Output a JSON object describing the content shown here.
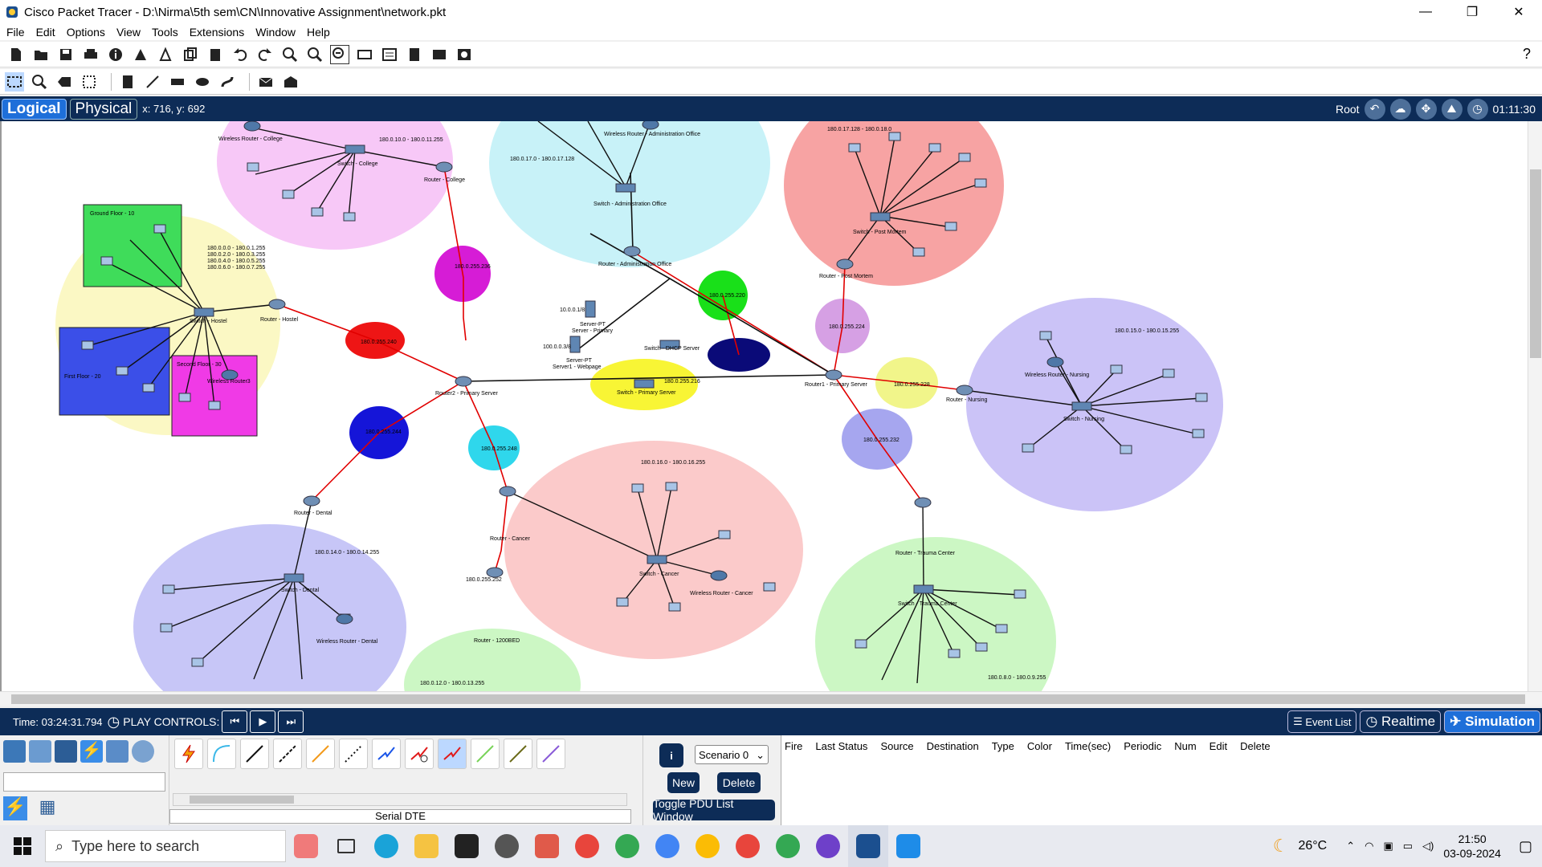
{
  "window": {
    "title": "Cisco Packet Tracer - D:\\Nirma\\5th sem\\CN\\Innovative Assignment\\network.pkt",
    "min": "—",
    "max": "❐",
    "close": "✕"
  },
  "menu": [
    "File",
    "Edit",
    "Options",
    "View",
    "Tools",
    "Extensions",
    "Window",
    "Help"
  ],
  "help_glyph": "?",
  "nav": {
    "logical": "Logical",
    "physical": "Physical",
    "coords": "x: 716, y: 692",
    "root": "Root",
    "clock": "01:11:30"
  },
  "canvas": {
    "zones": [
      {
        "label": "180.0.10.0 - 180.0.11.255"
      },
      {
        "label": "180.0.17.0 - 180.0.17.128"
      },
      {
        "label": "180.0.17.128 - 180.0.18.0"
      },
      {
        "label": "Ground Floor - 10"
      },
      {
        "label": "First Floor - 20"
      },
      {
        "label": "Second Floor - 30"
      },
      {
        "label": "180.0.15.0 - 180.0.15.255"
      },
      {
        "label": "180.0.16.0 - 180.0.16.255"
      },
      {
        "label": "180.0.14.0 - 180.0.14.255"
      },
      {
        "label": "180.0.8.0 - 180.0.9.255"
      },
      {
        "label": "180.0.12.0 - 180.0.13.255"
      }
    ],
    "hostel_ranges": [
      "180.0.0.0 - 180.0.1.255",
      "180.0.2.0 - 180.0.3.255",
      "180.0.4.0 - 180.0.5.255",
      "180.0.6.0 - 180.0.7.255"
    ],
    "links": [
      "180.0.255.236",
      "180.0.255.240",
      "180.0.255.244",
      "180.0.255.248",
      "180.0.255.252",
      "180.0.255.220",
      "180.0.255.224",
      "180.0.255.228",
      "180.0.255.232",
      "180.0.255.216"
    ],
    "servers": [
      {
        "ip": "10.0.0.1/8",
        "name": "Server-PT",
        "label": "Server - Primary"
      },
      {
        "ip": "100.0.0.3/8",
        "name": "Server-PT",
        "label": "Server1 - Webpage"
      }
    ],
    "devices": {
      "router_primary": "Router2 - Primary Server",
      "router1_primary": "Router1 - Primary Server",
      "router_college": "Router - College",
      "switch_college": "Switch - College",
      "wr_college": "Wireless Router - College",
      "switch_admin": "Switch - Administration Office",
      "wr_admin": "Wireless Router - Administration Office",
      "router_admin": "Router - Administration Office",
      "switch_postmortem": "Switch - Post Mortem",
      "router_postmortem": "Router - Post Mortem",
      "switch_hostel": "Switch - Hostel",
      "router_hostel": "Router - Hostel",
      "wr3": "Wireless Router3",
      "switch_dhcp": "Switch - DHCP Server",
      "switch_primary": "Switch - Primary Server",
      "router_nursing": "Router - Nursing",
      "switch_nursing": "Switch - Nursing",
      "wr_nursing": "Wireless Router - Nursing",
      "router_dental": "Router - Dental",
      "switch_dental": "Switch - Dental",
      "wr_dental": "Wireless Router - Dental",
      "router_cancer": "Router - Cancer",
      "switch_cancer": "Switch - Cancer",
      "wr_cancer": "Wireless Router - Cancer",
      "router_trauma": "Router - Trauma Center",
      "switch_trauma": "Switch - Trauma Center",
      "router_1200bed": "Router - 1200BED"
    }
  },
  "sim": {
    "time": "Time: 03:24:31.794",
    "play_controls": "PLAY CONTROLS:",
    "event_list": "Event List",
    "realtime": "Realtime",
    "simulation": "Simulation"
  },
  "bottom": {
    "conn_label": "Serial DTE",
    "scenario": "Scenario 0",
    "new": "New",
    "delete": "Delete",
    "toggle": "Toggle PDU List Window",
    "pdu_headers": [
      "Fire",
      "Last Status",
      "Source",
      "Destination",
      "Type",
      "Color",
      "Time(sec)",
      "Periodic",
      "Num",
      "Edit",
      "Delete"
    ]
  },
  "taskbar": {
    "search_placeholder": "Type here to search",
    "temp": "26°C",
    "time": "21:50",
    "date": "03-09-2024"
  }
}
